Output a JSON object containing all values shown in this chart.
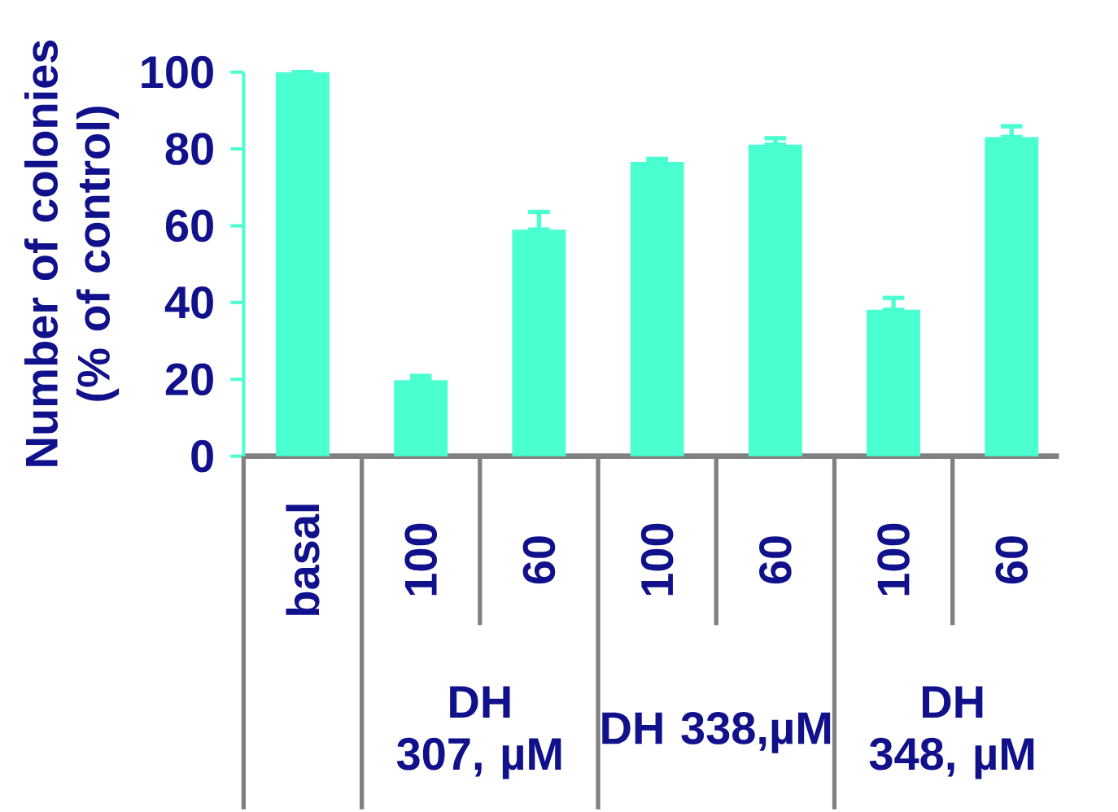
{
  "chart_data": {
    "type": "bar",
    "ylabel": "Number of colonies (% of control)",
    "categories": [
      "basal",
      "100",
      "60",
      "100",
      "60",
      "100",
      "60"
    ],
    "values": [
      100,
      19.8,
      59.0,
      76.6,
      81.1,
      38.1,
      83.1
    ],
    "errors": [
      null,
      [
        19.8,
        20.9
      ],
      [
        59.0,
        63.6
      ],
      [
        76.6,
        77.4
      ],
      [
        81.1,
        82.8
      ],
      [
        38.1,
        41.2
      ],
      [
        83.1,
        85.9
      ]
    ],
    "color": "#4affd0",
    "ylim": [
      0,
      100
    ],
    "yticks": [
      0,
      20,
      40,
      60,
      80,
      100
    ],
    "annotations": [
      "DH 307, µM",
      "DH 338,µM",
      "DH 348, µM"
    ]
  }
}
